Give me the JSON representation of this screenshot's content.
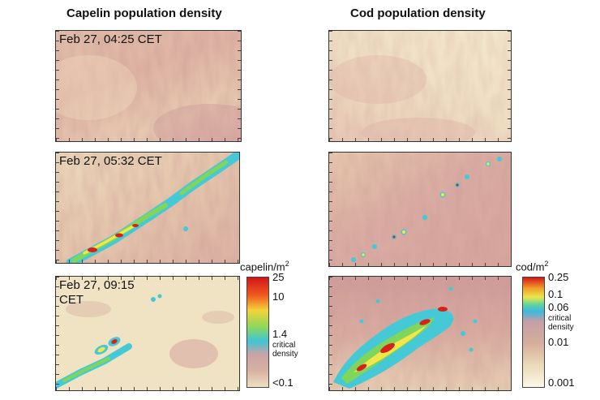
{
  "titles": {
    "capelin": "Capelin population density",
    "cod": "Cod population density"
  },
  "timestamps": {
    "t1": "Feb 27, 04:25 CET",
    "t2": "Feb 27, 05:32 CET",
    "t3_line1": "Feb 27, 09:15",
    "t3_line2": "CET"
  },
  "capelin_colorbar": {
    "unit_base": "capelin/m",
    "unit_sup": "2",
    "ticks": {
      "top": "25",
      "mid1": "10",
      "mid2": "1.4",
      "bottom": "<0.1"
    },
    "critical_line1": "critical",
    "critical_line2": "density"
  },
  "cod_colorbar": {
    "unit_base": "cod/m",
    "unit_sup": "2",
    "ticks": {
      "top": "0.25",
      "mid1": "0.1",
      "mid2": "0.06",
      "mid3": "0.01",
      "bottom": "0.001"
    },
    "critical_line1": "critical",
    "critical_line2": "density"
  },
  "colors": {
    "background_pink": "#d9a9a0",
    "background_cream": "#efe2c4",
    "school_cyan": "#45c9d6",
    "school_green": "#7fd65a",
    "school_yellow": "#f2e64a",
    "school_red": "#d8211b"
  }
}
